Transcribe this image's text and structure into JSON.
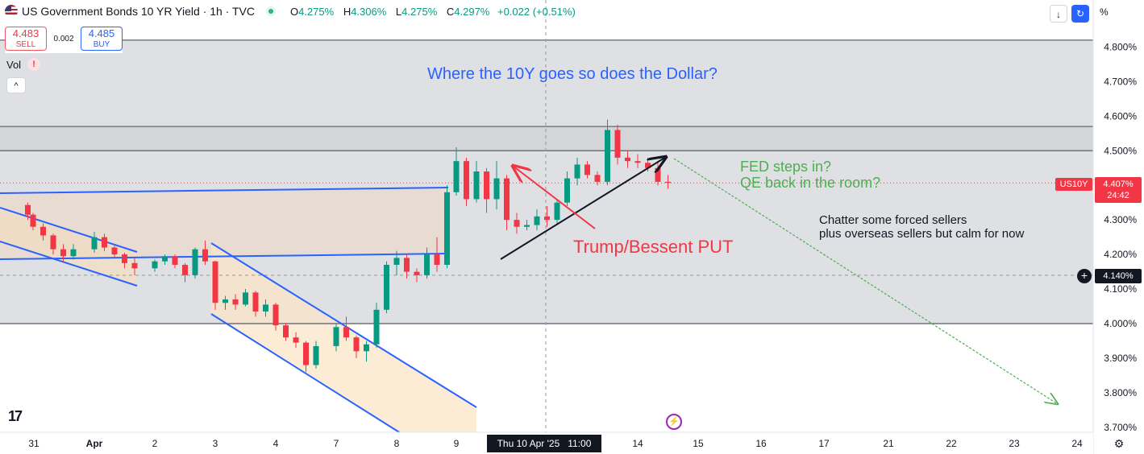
{
  "legend": {
    "title": "US Government Bonds 10 YR Yield · 1h · TVC",
    "o_label": "O",
    "o": "4.275%",
    "h_label": "H",
    "h": "4.306%",
    "l_label": "L",
    "l": "4.275%",
    "c_label": "C",
    "c": "4.297%",
    "change": "+0.022 (+0.51%)"
  },
  "trade": {
    "sell_price": "4.483",
    "sell_label": "SELL",
    "spread": "0.002",
    "buy_price": "4.485",
    "buy_label": "BUY"
  },
  "volume": {
    "label": "Vol",
    "warn": "!"
  },
  "toolbar": {
    "collapse": "^",
    "down_arrow": "↓",
    "sync": "↻",
    "percent": "%"
  },
  "cursor": {
    "time_label": "Thu 10 Apr '25   11:00",
    "price_label": "4.140%",
    "plus": "+"
  },
  "price_labels": {
    "symbol": "US10Y",
    "last": "4.407%",
    "countdown": "24:42"
  },
  "logo": "17",
  "chart_data": {
    "type": "candlestick",
    "title": "",
    "xlabel": "",
    "ylabel": "",
    "x_ticks": [
      "31",
      "Apr",
      "2",
      "3",
      "4",
      "7",
      "8",
      "9",
      "14",
      "15",
      "16",
      "17",
      "21",
      "22",
      "23",
      "24"
    ],
    "y_ticks": [
      "4.800%",
      "4.700%",
      "4.600%",
      "4.500%",
      "4.400%",
      "4.300%",
      "4.200%",
      "4.100%",
      "4.000%",
      "3.900%",
      "3.800%",
      "3.700%"
    ],
    "ylim": [
      3.68,
      4.92
    ],
    "series": [
      {
        "values": [
          [
            "2025-03-28 20:00",
            4.343,
            4.35,
            4.3,
            4.315
          ],
          [
            "2025-03-31 00:00",
            4.315,
            4.32,
            4.27,
            4.28
          ],
          [
            "2025-03-31 04:00",
            4.28,
            4.29,
            4.24,
            4.255
          ],
          [
            "2025-03-31 08:00",
            4.255,
            4.26,
            4.2,
            4.215
          ],
          [
            "2025-03-31 12:00",
            4.215,
            4.23,
            4.18,
            4.195
          ],
          [
            "2025-03-31 16:00",
            4.195,
            4.23,
            4.185,
            4.215
          ],
          [
            "2025-04-01 00:00",
            4.215,
            4.265,
            4.205,
            4.25
          ],
          [
            "2025-04-01 04:00",
            4.25,
            4.26,
            4.21,
            4.22
          ],
          [
            "2025-04-01 08:00",
            4.22,
            4.225,
            4.19,
            4.2
          ],
          [
            "2025-04-01 12:00",
            4.2,
            4.205,
            4.16,
            4.175
          ],
          [
            "2025-04-01 16:00",
            4.175,
            4.19,
            4.14,
            4.16
          ],
          [
            "2025-04-02 00:00",
            4.16,
            4.185,
            4.15,
            4.18
          ],
          [
            "2025-04-02 04:00",
            4.18,
            4.2,
            4.17,
            4.195
          ],
          [
            "2025-04-02 08:00",
            4.195,
            4.2,
            4.16,
            4.17
          ],
          [
            "2025-04-02 12:00",
            4.17,
            4.175,
            4.12,
            4.14
          ],
          [
            "2025-04-02 16:00",
            4.14,
            4.22,
            4.13,
            4.215
          ],
          [
            "2025-04-02 20:00",
            4.215,
            4.24,
            4.17,
            4.18
          ],
          [
            "2025-04-03 00:00",
            4.18,
            4.182,
            4.04,
            4.06
          ],
          [
            "2025-04-03 04:00",
            4.06,
            4.08,
            4.04,
            4.07
          ],
          [
            "2025-04-03 08:00",
            4.07,
            4.085,
            4.04,
            4.055
          ],
          [
            "2025-04-03 12:00",
            4.055,
            4.1,
            4.05,
            4.09
          ],
          [
            "2025-04-03 16:00",
            4.09,
            4.095,
            4.02,
            4.035
          ],
          [
            "2025-04-03 20:00",
            4.035,
            4.07,
            4.02,
            4.055
          ],
          [
            "2025-04-04 00:00",
            4.055,
            4.06,
            3.98,
            3.995
          ],
          [
            "2025-04-04 04:00",
            3.995,
            4.0,
            3.95,
            3.96
          ],
          [
            "2025-04-04 08:00",
            3.96,
            3.975,
            3.93,
            3.945
          ],
          [
            "2025-04-04 12:00",
            3.945,
            3.95,
            3.86,
            3.88
          ],
          [
            "2025-04-04 16:00",
            3.88,
            3.95,
            3.87,
            3.935
          ],
          [
            "2025-04-07 00:00",
            3.935,
            4.0,
            3.92,
            3.99
          ],
          [
            "2025-04-07 04:00",
            3.99,
            4.02,
            3.95,
            3.96
          ],
          [
            "2025-04-07 08:00",
            3.96,
            3.965,
            3.9,
            3.92
          ],
          [
            "2025-04-07 12:00",
            3.92,
            3.95,
            3.89,
            3.94
          ],
          [
            "2025-04-07 16:00",
            3.94,
            4.06,
            3.93,
            4.04
          ],
          [
            "2025-04-07 20:00",
            4.04,
            4.18,
            4.03,
            4.17
          ],
          [
            "2025-04-08 00:00",
            4.17,
            4.21,
            4.14,
            4.19
          ],
          [
            "2025-04-08 04:00",
            4.19,
            4.2,
            4.13,
            4.15
          ],
          [
            "2025-04-08 08:00",
            4.15,
            4.16,
            4.12,
            4.14
          ],
          [
            "2025-04-08 12:00",
            4.14,
            4.22,
            4.13,
            4.2
          ],
          [
            "2025-04-08 16:00",
            4.2,
            4.25,
            4.15,
            4.17
          ],
          [
            "2025-04-08 20:00",
            4.17,
            4.4,
            4.16,
            4.38
          ],
          [
            "2025-04-09 00:00",
            4.38,
            4.51,
            4.37,
            4.47
          ],
          [
            "2025-04-09 04:00",
            4.47,
            4.48,
            4.34,
            4.36
          ],
          [
            "2025-04-09 08:00",
            4.36,
            4.47,
            4.35,
            4.44
          ],
          [
            "2025-04-09 12:00",
            4.44,
            4.45,
            4.32,
            4.36
          ],
          [
            "2025-04-09 16:00",
            4.36,
            4.47,
            4.33,
            4.42
          ],
          [
            "2025-04-09 20:00",
            4.42,
            4.43,
            4.27,
            4.3
          ],
          [
            "2025-04-10 00:00",
            4.3,
            4.32,
            4.26,
            4.28
          ],
          [
            "2025-04-10 04:00",
            4.28,
            4.3,
            4.27,
            4.285
          ],
          [
            "2025-04-10 08:00",
            4.285,
            4.33,
            4.27,
            4.31
          ],
          [
            "2025-04-10 12:00",
            4.31,
            4.34,
            4.28,
            4.3
          ],
          [
            "2025-04-10 16:00",
            4.3,
            4.36,
            4.29,
            4.35
          ],
          [
            "2025-04-10 20:00",
            4.35,
            4.44,
            4.34,
            4.42
          ],
          [
            "2025-04-11 00:00",
            4.42,
            4.48,
            4.4,
            4.46
          ],
          [
            "2025-04-11 04:00",
            4.46,
            4.47,
            4.42,
            4.43
          ],
          [
            "2025-04-11 08:00",
            4.43,
            4.44,
            4.4,
            4.41
          ],
          [
            "2025-04-11 12:00",
            4.41,
            4.59,
            4.4,
            4.56
          ],
          [
            "2025-04-11 16:00",
            4.56,
            4.575,
            4.46,
            4.48
          ],
          [
            "2025-04-11 20:00",
            4.48,
            4.5,
            4.45,
            4.47
          ],
          [
            "2025-04-14 00:00",
            4.47,
            4.49,
            4.45,
            4.465
          ],
          [
            "2025-04-14 04:00",
            4.465,
            4.48,
            4.44,
            4.45
          ],
          [
            "2025-04-14 08:00",
            4.45,
            4.47,
            4.4,
            4.41
          ],
          [
            "2025-04-14 12:00",
            4.41,
            4.43,
            4.39,
            4.407
          ]
        ]
      }
    ],
    "annotations": [
      {
        "text": "Where the 10Y goes so does the Dollar?",
        "color": "#2962ff"
      },
      {
        "text": "FED steps in?",
        "color": "#4caf50"
      },
      {
        "text": "QE back in the room?",
        "color": "#4caf50"
      },
      {
        "text": "Chatter some forced sellers",
        "color": "#131722"
      },
      {
        "text": "plus overseas sellers but  calm for now",
        "color": "#131722"
      },
      {
        "text": "Trump/Bessent PUT",
        "color": "#f23645"
      }
    ],
    "levels": [
      4.82,
      4.57,
      4.5,
      4.0
    ],
    "colors": {
      "up": "#089981",
      "down": "#f23645",
      "zone": "#dfe0e4",
      "channel": "#2962ff",
      "projection": "#4caf50"
    }
  }
}
